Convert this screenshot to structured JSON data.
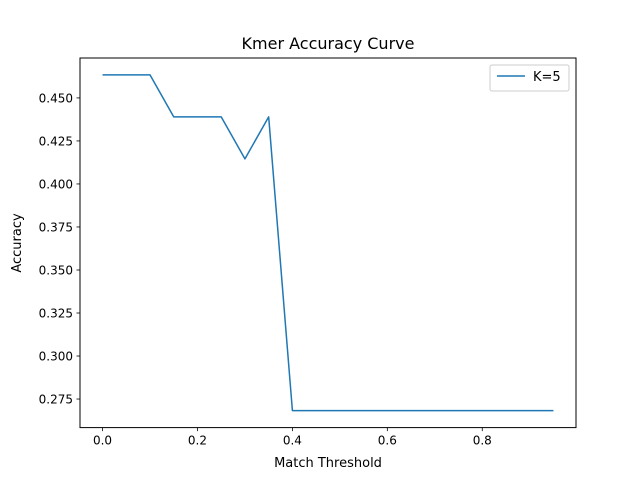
{
  "chart_data": {
    "type": "line",
    "title": "Kmer Accuracy Curve",
    "xlabel": "Match Threshold",
    "ylabel": "Accuracy",
    "xlim": [
      -0.0475,
      0.9975
    ],
    "ylim": [
      0.2584,
      0.4732
    ],
    "xticks": [
      0.0,
      0.2,
      0.4,
      0.6,
      0.8
    ],
    "xtick_labels": [
      "0.0",
      "0.2",
      "0.4",
      "0.6",
      "0.8"
    ],
    "yticks": [
      0.275,
      0.3,
      0.325,
      0.35,
      0.375,
      0.4,
      0.425,
      0.45
    ],
    "ytick_labels": [
      "0.275",
      "0.300",
      "0.325",
      "0.350",
      "0.375",
      "0.400",
      "0.425",
      "0.450"
    ],
    "grid": false,
    "legend_position": "top-right",
    "series": [
      {
        "name": "K=5",
        "color": "#1f77b4",
        "x": [
          0.0,
          0.05,
          0.1,
          0.15,
          0.2,
          0.25,
          0.3,
          0.35,
          0.4,
          0.45,
          0.5,
          0.55,
          0.6,
          0.65,
          0.7,
          0.75,
          0.8,
          0.85,
          0.9,
          0.95
        ],
        "y": [
          0.4634,
          0.4634,
          0.4634,
          0.439,
          0.439,
          0.439,
          0.4146,
          0.439,
          0.2683,
          0.2683,
          0.2683,
          0.2683,
          0.2683,
          0.2683,
          0.2683,
          0.2683,
          0.2683,
          0.2683,
          0.2683,
          0.2683
        ]
      }
    ]
  }
}
